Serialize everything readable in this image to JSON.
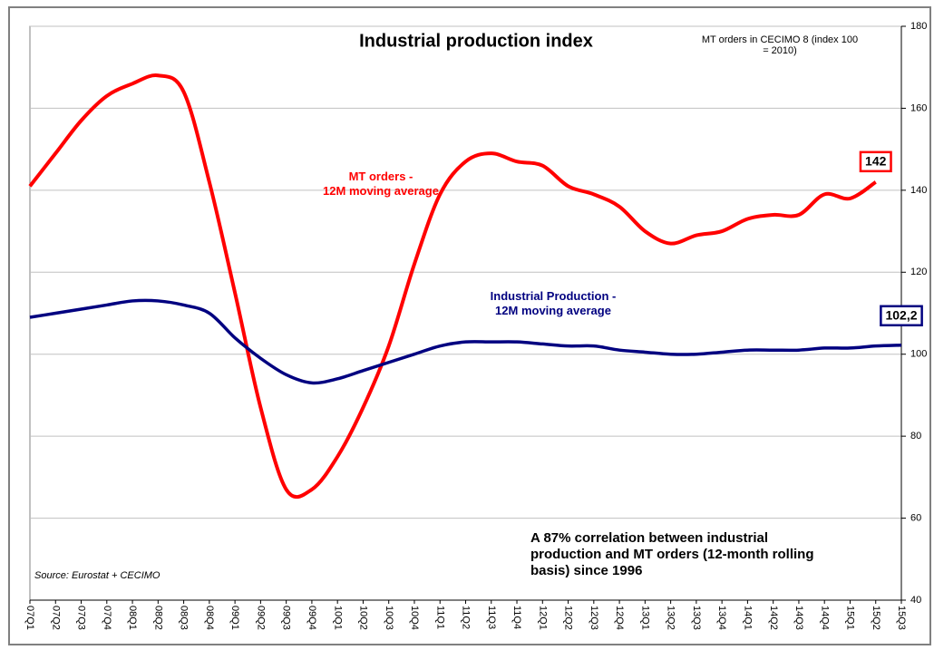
{
  "chart_data": {
    "type": "line",
    "title": "Industrial production index",
    "subtitle": "MT orders in CECIMO 8 (index 100\n= 2010)",
    "annotations": [
      "A 87% correlation between industrial\nproduction and MT orders (12-month rolling\nbasis) since 1996",
      "Source: Eurostat + CECIMO"
    ],
    "categories": [
      "07Q1",
      "07Q2",
      "07Q3",
      "07Q4",
      "08Q1",
      "08Q2",
      "08Q3",
      "08Q4",
      "09Q1",
      "09Q2",
      "09Q3",
      "09Q4",
      "10Q1",
      "10Q2",
      "10Q3",
      "10Q4",
      "11Q1",
      "11Q2",
      "11Q3",
      "11Q4",
      "12Q1",
      "12Q2",
      "12Q3",
      "12Q4",
      "13Q1",
      "13Q2",
      "13Q3",
      "13Q4",
      "14Q1",
      "14Q2",
      "14Q3",
      "14Q4",
      "15Q1",
      "15Q2",
      "15Q3"
    ],
    "series": [
      {
        "name": "MT orders -\n12M moving average",
        "color": "#ff0000",
        "values": [
          141,
          149,
          157,
          163,
          166,
          168,
          164,
          142,
          115,
          87,
          67,
          67,
          75,
          87,
          102,
          122,
          139,
          147,
          149,
          147,
          146,
          141,
          139,
          136,
          130,
          127,
          129,
          130,
          133,
          134,
          134,
          139,
          138,
          142,
          null
        ]
      },
      {
        "name": "Industrial Production -\n12M moving average",
        "color": "#000080",
        "values": [
          109,
          110,
          111,
          112,
          113,
          113,
          112,
          110,
          104,
          99,
          95,
          93,
          94,
          96,
          98,
          100,
          102,
          103,
          103,
          103,
          102.5,
          102,
          102,
          101,
          100.5,
          100,
          100,
          100.5,
          101,
          101,
          101,
          101.5,
          101.5,
          102,
          102.2
        ],
        "value_labels": [
          null,
          null,
          null,
          null,
          null,
          null,
          null,
          null,
          null,
          null,
          null,
          null,
          null,
          null,
          null,
          null,
          null,
          null,
          null,
          null,
          null,
          null,
          null,
          null,
          null,
          null,
          null,
          null,
          null,
          null,
          null,
          null,
          null,
          null,
          "102,2"
        ]
      }
    ],
    "ylim": [
      40,
      180
    ],
    "yticks": [
      40,
      60,
      80,
      100,
      120,
      140,
      160,
      180
    ],
    "grid": true
  }
}
